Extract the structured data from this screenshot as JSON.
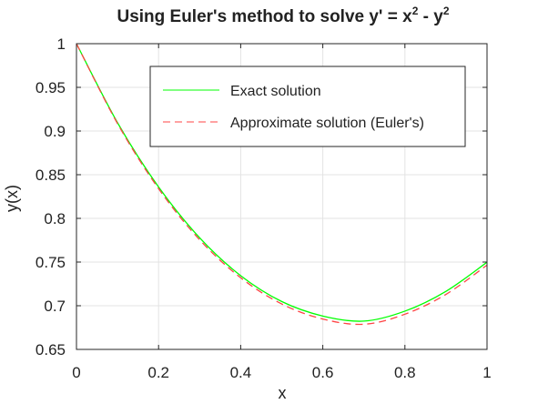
{
  "chart_data": {
    "type": "line",
    "title": {
      "prefix": "Using Euler's method to solve y' = x",
      "sup1": "2",
      "middle": " - y",
      "sup2": "2"
    },
    "xlabel": "x",
    "ylabel": "y(x)",
    "xlim": [
      0,
      1
    ],
    "ylim": [
      0.65,
      1
    ],
    "xticks": [
      0,
      0.2,
      0.4,
      0.6,
      0.8,
      1
    ],
    "yticks": [
      0.65,
      0.7,
      0.75,
      0.8,
      0.85,
      0.9,
      0.95,
      1
    ],
    "xtick_labels": [
      "0",
      "0.2",
      "0.4",
      "0.6",
      "0.8",
      "1"
    ],
    "ytick_labels": [
      "0.65",
      "0.7",
      "0.75",
      "0.8",
      "0.85",
      "0.9",
      "0.95",
      "1"
    ],
    "grid": true,
    "legend_position": "top-right",
    "series": [
      {
        "name": "Exact solution",
        "color": "#00ff00",
        "style": "solid",
        "x": [
          0,
          0.1,
          0.2,
          0.3,
          0.4,
          0.5,
          0.6,
          0.7,
          0.8,
          0.9,
          1.0
        ],
        "y": [
          1.0,
          0.9095,
          0.8359,
          0.7778,
          0.7344,
          0.7048,
          0.6882,
          0.6824,
          0.6938,
          0.7165,
          0.7498
        ]
      },
      {
        "name": "Approximate solution (Euler's)",
        "color": "#ff4444",
        "style": "dashed",
        "x": [
          0,
          0.1,
          0.2,
          0.3,
          0.4,
          0.5,
          0.6,
          0.7,
          0.8,
          0.9,
          1.0
        ],
        "y": [
          1.0,
          0.9085,
          0.834,
          0.7755,
          0.732,
          0.702,
          0.6848,
          0.6788,
          0.6903,
          0.713,
          0.7465
        ]
      }
    ]
  }
}
